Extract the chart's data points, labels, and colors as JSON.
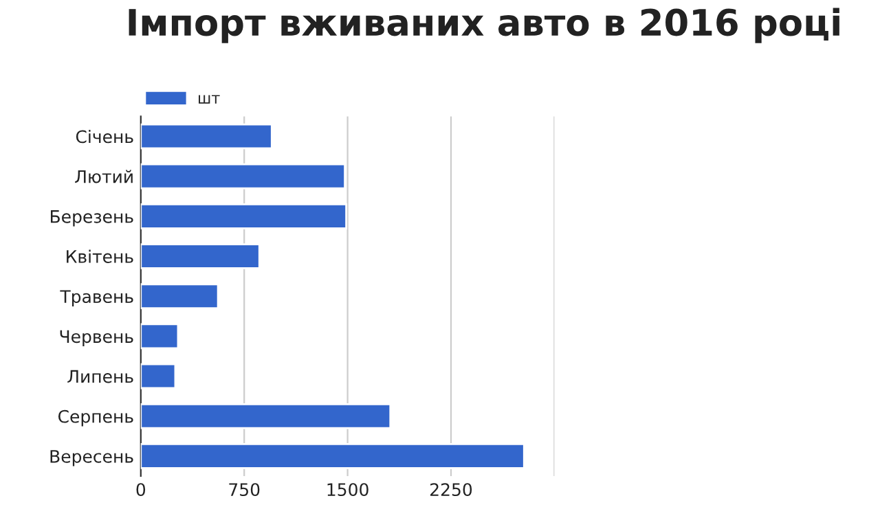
{
  "chart_data": {
    "type": "bar",
    "orientation": "horizontal",
    "title": "Імпорт вживаних авто в 2016 році",
    "categories": [
      "Січень",
      "Лютий",
      "Березень",
      "Квітень",
      "Травень",
      "Червень",
      "Липень",
      "Серпень",
      "Вересень"
    ],
    "series": [
      {
        "name": "шт",
        "color": "#3366cc",
        "values": [
          950,
          1480,
          1490,
          860,
          560,
          270,
          250,
          1810,
          2780
        ]
      }
    ],
    "xlim": [
      0,
      3000
    ],
    "xticks": [
      0,
      750,
      1500,
      2250,
      {
        "value": 3000,
        "label": null
      }
    ],
    "grid": "x",
    "legend": "top left"
  }
}
